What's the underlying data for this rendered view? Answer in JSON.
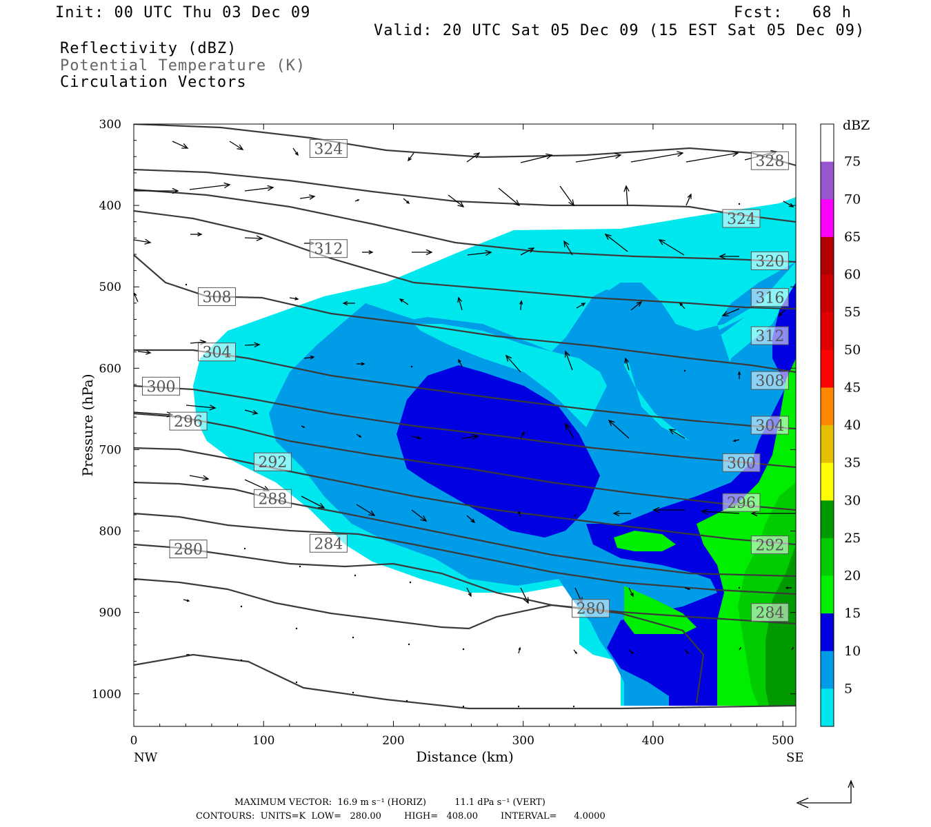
{
  "header": {
    "init": "Init: 00 UTC Thu 03 Dec 09",
    "fcst": "Fcst:   68 h",
    "valid": "Valid: 20 UTC Sat 05 Dec 09 (15 EST Sat 05 Dec 09)",
    "fields": [
      "Reflectivity (dBZ)",
      "Potential Temperature (K)",
      "Circulation Vectors"
    ]
  },
  "colors": {
    "c5": "#00e8ee",
    "c10": "#009ce8",
    "c15": "#0000e0",
    "c20": "#00ee00",
    "c25": "#00cc00",
    "c30": "#009900",
    "c35": "#ffff00",
    "c40": "#e6c000",
    "c45": "#ff8800",
    "c50": "#ff0000",
    "c55": "#e00000",
    "c60": "#cc0000",
    "c65": "#b00000",
    "c70": "#ff00ff",
    "c75": "#9955cc",
    "contour": "#3a3a3a"
  },
  "chart_data": {
    "type": "contour",
    "xlabel": "Distance (km)",
    "ylabel": "Pressure (hPa)",
    "xlim": [
      0,
      510
    ],
    "ylim": [
      300,
      1040
    ],
    "y_scale": "linear-reversed",
    "x_ticks": [
      0,
      100,
      200,
      300,
      400,
      500
    ],
    "y_ticks": [
      300,
      400,
      500,
      600,
      700,
      800,
      900,
      1000
    ],
    "x_endpoint_labels": [
      "NW",
      "SE"
    ],
    "colorbar": {
      "unit": "dBZ",
      "levels": [
        5,
        10,
        15,
        20,
        25,
        30,
        35,
        40,
        45,
        50,
        55,
        60,
        65,
        70,
        75
      ]
    },
    "theta_labels": [
      {
        "text": "324",
        "x": 150,
        "p": 330
      },
      {
        "text": "328",
        "x": 490,
        "p": 345
      },
      {
        "text": "324",
        "x": 468,
        "p": 416
      },
      {
        "text": "320",
        "x": 490,
        "p": 468
      },
      {
        "text": "316",
        "x": 490,
        "p": 513
      },
      {
        "text": "312",
        "x": 150,
        "p": 453
      },
      {
        "text": "312",
        "x": 490,
        "p": 560
      },
      {
        "text": "308",
        "x": 64,
        "p": 512
      },
      {
        "text": "308",
        "x": 490,
        "p": 615
      },
      {
        "text": "304",
        "x": 64,
        "p": 580
      },
      {
        "text": "304",
        "x": 490,
        "p": 670
      },
      {
        "text": "300",
        "x": 21,
        "p": 622
      },
      {
        "text": "300",
        "x": 468,
        "p": 716
      },
      {
        "text": "296",
        "x": 42,
        "p": 665
      },
      {
        "text": "296",
        "x": 468,
        "p": 765
      },
      {
        "text": "292",
        "x": 107,
        "p": 715
      },
      {
        "text": "292",
        "x": 490,
        "p": 817
      },
      {
        "text": "288",
        "x": 107,
        "p": 760
      },
      {
        "text": "284",
        "x": 150,
        "p": 815
      },
      {
        "text": "284",
        "x": 490,
        "p": 900
      },
      {
        "text": "280",
        "x": 42,
        "p": 822
      },
      {
        "text": "280",
        "x": 352,
        "p": 895
      }
    ]
  },
  "footer": {
    "max_vector": "MAXIMUM VECTOR:  16.9 m s⁻¹ (HORIZ)          11.1 dPa s⁻¹ (VERT)",
    "contours": "CONTOURS:  UNITS=K  LOW=   280.00        HIGH=   408.00        INTERVAL=      4.0000"
  }
}
